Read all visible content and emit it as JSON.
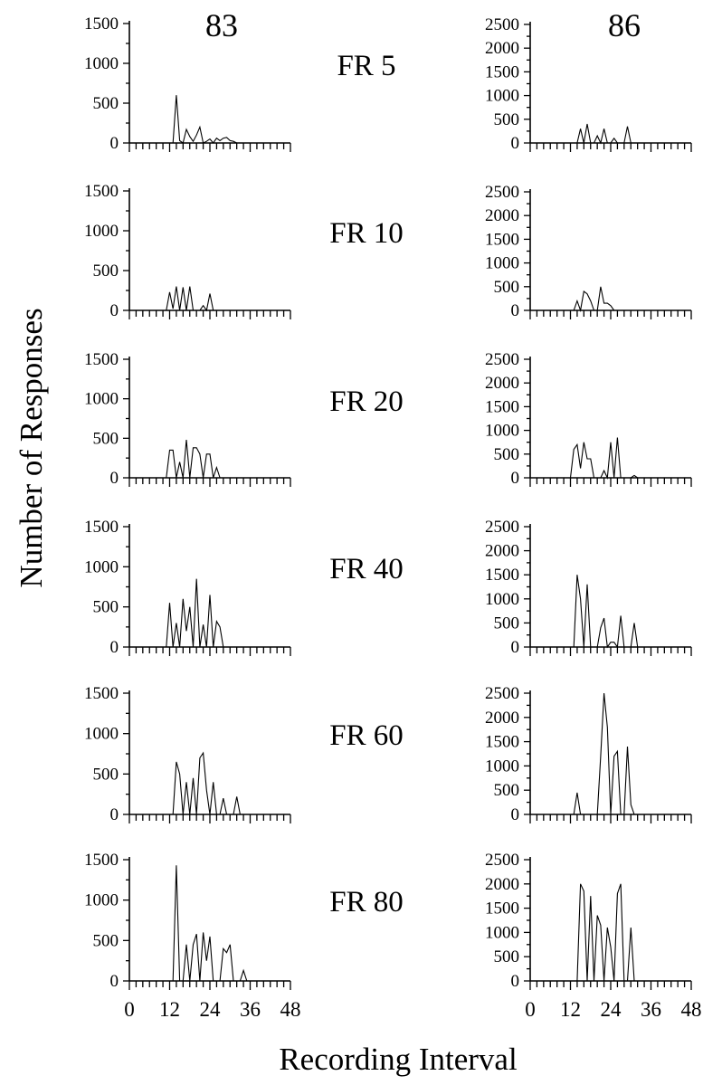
{
  "figure": {
    "y_axis_title": "Number of Responses",
    "x_axis_title": "Recording Interval",
    "subjects": [
      "83",
      "86"
    ]
  },
  "chart_data": [
    {
      "type": "line",
      "subject": "83",
      "condition": "FR 5",
      "ylim": [
        0,
        1500
      ],
      "yticks": [
        0,
        500,
        1000,
        1500
      ],
      "xlim": [
        0,
        48
      ],
      "xticks": [
        0,
        12,
        24,
        36,
        48
      ],
      "x": [
        0,
        12,
        13,
        14,
        15,
        16,
        17,
        18,
        19,
        20,
        21,
        22,
        23,
        24,
        25,
        26,
        27,
        28,
        29,
        30,
        31,
        32,
        33,
        34,
        48
      ],
      "y": [
        0,
        0,
        0,
        600,
        30,
        0,
        170,
        80,
        20,
        100,
        200,
        0,
        20,
        50,
        0,
        60,
        30,
        60,
        70,
        30,
        20,
        0,
        0,
        0,
        0
      ]
    },
    {
      "type": "line",
      "subject": "86",
      "condition": "FR 5",
      "ylim": [
        0,
        2500
      ],
      "yticks": [
        0,
        500,
        1000,
        1500,
        2000,
        2500
      ],
      "xlim": [
        0,
        48
      ],
      "xticks": [
        0,
        12,
        24,
        36,
        48
      ],
      "x": [
        0,
        12,
        13,
        14,
        15,
        16,
        17,
        18,
        19,
        20,
        21,
        22,
        23,
        24,
        25,
        26,
        27,
        28,
        29,
        30,
        31,
        32,
        33,
        48
      ],
      "y": [
        0,
        0,
        0,
        0,
        300,
        0,
        400,
        0,
        0,
        150,
        0,
        300,
        0,
        0,
        100,
        0,
        0,
        0,
        350,
        0,
        0,
        0,
        0,
        0
      ]
    },
    {
      "type": "line",
      "subject": "83",
      "condition": "FR 10",
      "ylim": [
        0,
        1500
      ],
      "yticks": [
        0,
        500,
        1000,
        1500
      ],
      "xlim": [
        0,
        48
      ],
      "xticks": [
        0,
        12,
        24,
        36,
        48
      ],
      "x": [
        0,
        10,
        11,
        12,
        13,
        14,
        15,
        16,
        17,
        18,
        19,
        20,
        21,
        22,
        23,
        24,
        25,
        26,
        27,
        28,
        29,
        30,
        48
      ],
      "y": [
        0,
        0,
        0,
        230,
        20,
        300,
        0,
        290,
        0,
        300,
        0,
        0,
        0,
        60,
        0,
        210,
        0,
        0,
        0,
        0,
        0,
        0,
        0
      ]
    },
    {
      "type": "line",
      "subject": "86",
      "condition": "FR 10",
      "ylim": [
        0,
        2500
      ],
      "yticks": [
        0,
        500,
        1000,
        1500,
        2000,
        2500
      ],
      "xlim": [
        0,
        48
      ],
      "xticks": [
        0,
        12,
        24,
        36,
        48
      ],
      "x": [
        0,
        12,
        13,
        14,
        15,
        16,
        17,
        18,
        19,
        20,
        21,
        22,
        23,
        24,
        25,
        26,
        27,
        28,
        48
      ],
      "y": [
        0,
        0,
        0,
        200,
        0,
        400,
        350,
        200,
        0,
        0,
        500,
        150,
        150,
        100,
        0,
        0,
        0,
        0,
        0
      ]
    },
    {
      "type": "line",
      "subject": "83",
      "condition": "FR 20",
      "ylim": [
        0,
        1500
      ],
      "yticks": [
        0,
        500,
        1000,
        1500
      ],
      "xlim": [
        0,
        48
      ],
      "xticks": [
        0,
        12,
        24,
        36,
        48
      ],
      "x": [
        0,
        10,
        11,
        12,
        13,
        14,
        15,
        16,
        17,
        18,
        19,
        20,
        21,
        22,
        23,
        24,
        25,
        26,
        27,
        28,
        48
      ],
      "y": [
        0,
        0,
        0,
        350,
        350,
        0,
        200,
        0,
        480,
        0,
        380,
        380,
        300,
        0,
        300,
        300,
        0,
        130,
        0,
        0,
        0
      ]
    },
    {
      "type": "line",
      "subject": "86",
      "condition": "FR 20",
      "ylim": [
        0,
        2500
      ],
      "yticks": [
        0,
        500,
        1000,
        1500,
        2000,
        2500
      ],
      "xlim": [
        0,
        48
      ],
      "xticks": [
        0,
        12,
        24,
        36,
        48
      ],
      "x": [
        0,
        12,
        13,
        14,
        15,
        16,
        17,
        18,
        19,
        20,
        21,
        22,
        23,
        24,
        25,
        26,
        27,
        28,
        29,
        30,
        31,
        32,
        48
      ],
      "y": [
        0,
        0,
        600,
        700,
        200,
        750,
        400,
        400,
        0,
        0,
        0,
        150,
        0,
        750,
        0,
        850,
        0,
        0,
        0,
        0,
        50,
        0,
        0
      ]
    },
    {
      "type": "line",
      "subject": "83",
      "condition": "FR 40",
      "ylim": [
        0,
        1500
      ],
      "yticks": [
        0,
        500,
        1000,
        1500
      ],
      "xlim": [
        0,
        48
      ],
      "xticks": [
        0,
        12,
        24,
        36,
        48
      ],
      "x": [
        0,
        10,
        11,
        12,
        13,
        14,
        15,
        16,
        17,
        18,
        19,
        20,
        21,
        22,
        23,
        24,
        25,
        26,
        27,
        28,
        48
      ],
      "y": [
        0,
        0,
        0,
        550,
        0,
        300,
        0,
        600,
        200,
        500,
        0,
        850,
        0,
        280,
        0,
        650,
        0,
        320,
        250,
        0,
        0
      ]
    },
    {
      "type": "line",
      "subject": "86",
      "condition": "FR 40",
      "ylim": [
        0,
        2500
      ],
      "yticks": [
        0,
        500,
        1000,
        1500,
        2000,
        2500
      ],
      "xlim": [
        0,
        48
      ],
      "xticks": [
        0,
        12,
        24,
        36,
        48
      ],
      "x": [
        0,
        12,
        13,
        14,
        15,
        16,
        17,
        18,
        19,
        20,
        21,
        22,
        23,
        24,
        25,
        26,
        27,
        28,
        29,
        30,
        31,
        32,
        48
      ],
      "y": [
        0,
        0,
        0,
        1500,
        1000,
        0,
        1300,
        0,
        0,
        0,
        400,
        600,
        0,
        100,
        100,
        0,
        650,
        0,
        0,
        0,
        500,
        0,
        0
      ]
    },
    {
      "type": "line",
      "subject": "83",
      "condition": "FR 60",
      "ylim": [
        0,
        1500
      ],
      "yticks": [
        0,
        500,
        1000,
        1500
      ],
      "xlim": [
        0,
        48
      ],
      "xticks": [
        0,
        12,
        24,
        36,
        48
      ],
      "x": [
        0,
        12,
        13,
        14,
        15,
        16,
        17,
        18,
        19,
        20,
        21,
        22,
        23,
        24,
        25,
        26,
        27,
        28,
        29,
        30,
        31,
        32,
        33,
        34,
        48
      ],
      "y": [
        0,
        0,
        0,
        650,
        500,
        0,
        400,
        0,
        450,
        0,
        700,
        760,
        300,
        0,
        400,
        0,
        0,
        200,
        0,
        0,
        0,
        220,
        0,
        0,
        0
      ]
    },
    {
      "type": "line",
      "subject": "86",
      "condition": "FR 60",
      "ylim": [
        0,
        2500
      ],
      "yticks": [
        0,
        500,
        1000,
        1500,
        2000,
        2500
      ],
      "xlim": [
        0,
        48
      ],
      "xticks": [
        0,
        12,
        24,
        36,
        48
      ],
      "x": [
        0,
        12,
        13,
        14,
        15,
        16,
        17,
        18,
        19,
        20,
        21,
        22,
        23,
        24,
        25,
        26,
        27,
        28,
        29,
        30,
        31,
        48
      ],
      "y": [
        0,
        0,
        0,
        450,
        0,
        0,
        0,
        0,
        0,
        0,
        1200,
        2500,
        1800,
        0,
        1200,
        1300,
        0,
        0,
        1400,
        200,
        0,
        0
      ]
    },
    {
      "type": "line",
      "subject": "83",
      "condition": "FR 80",
      "ylim": [
        0,
        1500
      ],
      "yticks": [
        0,
        500,
        1000,
        1500
      ],
      "xlim": [
        0,
        48
      ],
      "xticks": [
        0,
        12,
        24,
        36,
        48
      ],
      "x": [
        0,
        13,
        14,
        15,
        16,
        17,
        18,
        19,
        20,
        21,
        22,
        23,
        24,
        25,
        26,
        27,
        28,
        29,
        30,
        31,
        32,
        33,
        34,
        35,
        48
      ],
      "y": [
        0,
        0,
        1430,
        0,
        0,
        450,
        0,
        450,
        580,
        0,
        600,
        250,
        550,
        0,
        0,
        0,
        400,
        350,
        450,
        0,
        0,
        0,
        130,
        0,
        0
      ]
    },
    {
      "type": "line",
      "subject": "86",
      "condition": "FR 80",
      "ylim": [
        0,
        2500
      ],
      "yticks": [
        0,
        500,
        1000,
        1500,
        2000,
        2500
      ],
      "xlim": [
        0,
        48
      ],
      "xticks": [
        0,
        12,
        24,
        36,
        48
      ],
      "x": [
        0,
        14,
        15,
        16,
        17,
        18,
        19,
        20,
        21,
        22,
        23,
        24,
        25,
        26,
        27,
        28,
        29,
        30,
        31,
        48
      ],
      "y": [
        0,
        0,
        2000,
        1850,
        0,
        1750,
        0,
        1350,
        1150,
        0,
        1100,
        700,
        0,
        1800,
        2000,
        0,
        0,
        1100,
        0,
        0
      ]
    }
  ]
}
